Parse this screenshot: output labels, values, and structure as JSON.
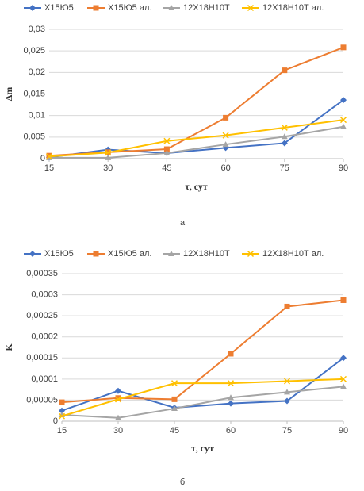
{
  "chart_data": [
    {
      "type": "line",
      "x": [
        15,
        30,
        45,
        60,
        75,
        90
      ],
      "xlim": [
        15,
        90
      ],
      "xticks": [
        15,
        30,
        45,
        60,
        75,
        90
      ],
      "ylim": [
        0,
        0.03
      ],
      "yticks": [
        0,
        {
          "value": 0.005,
          "label": "0,005"
        },
        {
          "value": 0.01,
          "label": "0,01"
        },
        {
          "value": 0.015,
          "label": "0,015"
        },
        {
          "value": 0.02,
          "label": "0,02"
        },
        {
          "value": 0.025,
          "label": "0,025"
        },
        {
          "value": 0.03,
          "label": "0,03"
        }
      ],
      "y_label": "Δm",
      "x_label": "τ, сут",
      "caption": "а",
      "grid": true,
      "series": [
        {
          "name": "Х15Ю5",
          "color": "#4472c4",
          "marker": "diamond",
          "values": [
            0.0003,
            0.0021,
            0.0013,
            0.0025,
            0.0036,
            0.0136
          ]
        },
        {
          "name": "Х15Ю5 ал.",
          "color": "#ed7d31",
          "marker": "square",
          "values": [
            0.0007,
            0.0015,
            0.0022,
            0.0095,
            0.0205,
            0.0258
          ]
        },
        {
          "name": "12Х18Н10Т",
          "color": "#a5a5a5",
          "marker": "triangle",
          "values": [
            0.0002,
            0.0002,
            0.0013,
            0.0033,
            0.0051,
            0.0074
          ]
        },
        {
          "name": "12Х18Н10Т ал.",
          "color": "#ffc000",
          "marker": "x",
          "values": [
            0.0005,
            0.0014,
            0.0041,
            0.0054,
            0.0072,
            0.009
          ]
        }
      ]
    },
    {
      "type": "line",
      "x": [
        15,
        30,
        45,
        60,
        75,
        90
      ],
      "xlim": [
        15,
        90
      ],
      "xticks": [
        15,
        30,
        45,
        60,
        75,
        90
      ],
      "ylim": [
        0,
        0.00035
      ],
      "yticks": [
        0,
        {
          "value": 5e-05,
          "label": "0,00005"
        },
        {
          "value": 0.0001,
          "label": "0,0001"
        },
        {
          "value": 0.00015,
          "label": "0,00015"
        },
        {
          "value": 0.0002,
          "label": "0,0002"
        },
        {
          "value": 0.00025,
          "label": "0,00025"
        },
        {
          "value": 0.0003,
          "label": "0,0003"
        },
        {
          "value": 0.00035,
          "label": "0,00035"
        }
      ],
      "y_label": "K",
      "x_label": "τ, сут",
      "caption": "б",
      "grid": true,
      "series": [
        {
          "name": "Х15Ю5",
          "color": "#4472c4",
          "marker": "diamond",
          "values": [
            2.5e-05,
            7.2e-05,
            3.2e-05,
            4.2e-05,
            4.8e-05,
            0.00015
          ]
        },
        {
          "name": "Х15Ю5 ал.",
          "color": "#ed7d31",
          "marker": "square",
          "values": [
            4.5e-05,
            5.5e-05,
            5.2e-05,
            0.00016,
            0.000272,
            0.000287
          ]
        },
        {
          "name": "12Х18Н10Т",
          "color": "#a5a5a5",
          "marker": "triangle",
          "values": [
            1.5e-05,
            8e-06,
            3e-05,
            5.6e-05,
            6.9e-05,
            8.2e-05
          ]
        },
        {
          "name": "12Х18Н10Т ал.",
          "color": "#ffc000",
          "marker": "x",
          "values": [
            1.2e-05,
            5.2e-05,
            9e-05,
            9e-05,
            9.5e-05,
            0.0001
          ]
        }
      ]
    }
  ]
}
